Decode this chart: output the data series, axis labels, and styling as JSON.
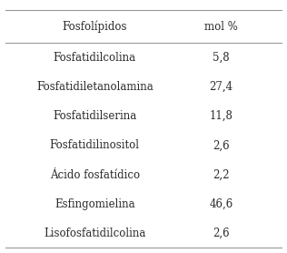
{
  "col1_header": "Fosfolípidos",
  "col2_header": "mol %",
  "rows": [
    [
      "Fosfatidilcolina",
      "5,8"
    ],
    [
      "Fosfatidiletanolamina",
      "27,4"
    ],
    [
      "Fosfatidilserina",
      "11,8"
    ],
    [
      "Fosfatidilinositol",
      "2,6"
    ],
    [
      "Ácido fosfatídico",
      "2,2"
    ],
    [
      "Esfingomielina",
      "46,6"
    ],
    [
      "Lisofosfatidilcolina",
      "2,6"
    ]
  ],
  "bg_color": "#ffffff",
  "text_color": "#2a2a2a",
  "line_color": "#999999",
  "font_size": 8.5,
  "header_font_size": 8.5,
  "figsize": [
    3.16,
    2.78
  ],
  "dpi": 100
}
